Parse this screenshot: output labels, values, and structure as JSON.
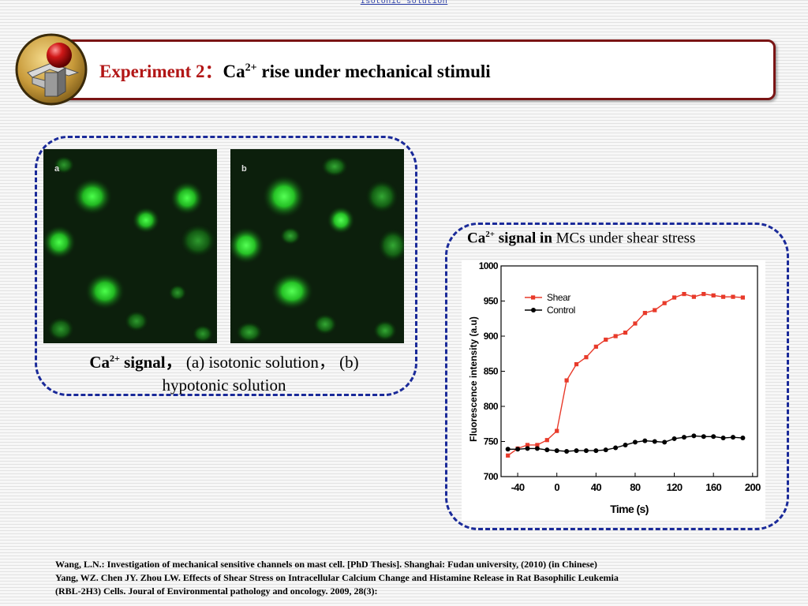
{
  "header": {
    "top_link": "Isotonic solution",
    "title_lead": "Experiment 2：",
    "title_ion": "Ca",
    "title_charge": "2+",
    "title_rest": " rise under mechanical stimuli"
  },
  "micrographs": {
    "panel_a_label": "a",
    "panel_b_label": "b"
  },
  "caption": {
    "ion": "Ca",
    "charge": "2+",
    "signal_word": " signal，",
    "part_a": " (a) isotonic solution，",
    "part_b": " (b)",
    "line2": "hypotonic solution"
  },
  "chart_title": {
    "ion": "Ca",
    "charge": "2+",
    "bold_rest": " signal in",
    "normal_rest": " MCs under shear stress"
  },
  "chart_data": {
    "type": "line",
    "xlabel": "Time (s)",
    "ylabel": "Fluorescence intensity  (a.u)",
    "xlim": [
      -57,
      205
    ],
    "ylim": [
      700,
      1000
    ],
    "xticks": [
      "-40",
      "0",
      "40",
      "80",
      "120",
      "160",
      "200"
    ],
    "yticks": [
      "700",
      "750",
      "800",
      "850",
      "900",
      "950",
      "1000"
    ],
    "legend_position": "top-left",
    "series": [
      {
        "name": "Shear",
        "color": "#e83a2a",
        "marker": "square",
        "x": [
          -50,
          -40,
          -30,
          -20,
          -10,
          0,
          10,
          20,
          30,
          40,
          50,
          60,
          70,
          80,
          90,
          100,
          110,
          120,
          130,
          140,
          150,
          160,
          170,
          180,
          190
        ],
        "y": [
          730,
          740,
          745,
          745,
          752,
          765,
          837,
          860,
          870,
          885,
          895,
          900,
          905,
          918,
          933,
          937,
          947,
          955,
          960,
          956,
          960,
          958,
          956,
          956,
          955
        ]
      },
      {
        "name": "Control",
        "color": "#000000",
        "marker": "circle",
        "x": [
          -50,
          -40,
          -30,
          -20,
          -10,
          0,
          10,
          20,
          30,
          40,
          50,
          60,
          70,
          80,
          90,
          100,
          110,
          120,
          130,
          140,
          150,
          160,
          170,
          180,
          190
        ],
        "y": [
          739,
          739,
          740,
          740,
          738,
          737,
          736,
          737,
          737,
          737,
          738,
          741,
          745,
          749,
          751,
          750,
          749,
          754,
          756,
          758,
          757,
          757,
          755,
          756,
          755
        ]
      }
    ]
  },
  "references": [
    "Wang, L.N.: Investigation of mechanical sensitive channels on mast cell. [PhD Thesis]. Shanghai: Fudan university, (2010) (in Chinese)",
    "Yang, WZ. Chen JY. Zhou LW. Effects of Shear Stress on Intracellular Calcium Change and Histamine Release in Rat Basophilic Leukemia",
    "(RBL-2H3) Cells. Joural of Environmental pathology and oncology. 2009, 28(3):"
  ]
}
